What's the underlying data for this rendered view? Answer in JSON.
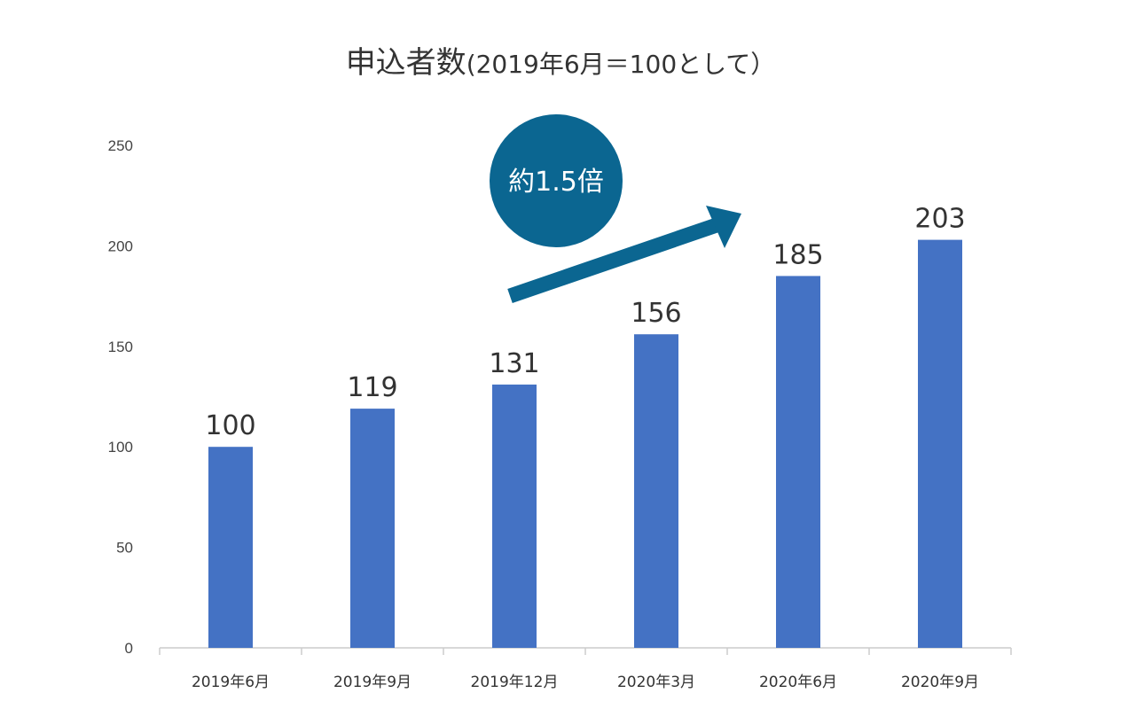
{
  "chart_data": {
    "type": "bar",
    "title": "申込者数",
    "subtitle": "(2019年6月＝100として）",
    "categories": [
      "2019年6月",
      "2019年9月",
      "2019年12月",
      "2020年3月",
      "2020年6月",
      "2020年9月"
    ],
    "values": [
      100,
      119,
      131,
      156,
      185,
      203
    ],
    "ylim": [
      0,
      250
    ],
    "yticks": [
      0,
      50,
      100,
      150,
      200,
      250
    ],
    "grid": false,
    "legend": "none",
    "bar_color": "#4472C4",
    "annotation": {
      "text": "約1.5倍",
      "color": "#0B6691"
    }
  }
}
